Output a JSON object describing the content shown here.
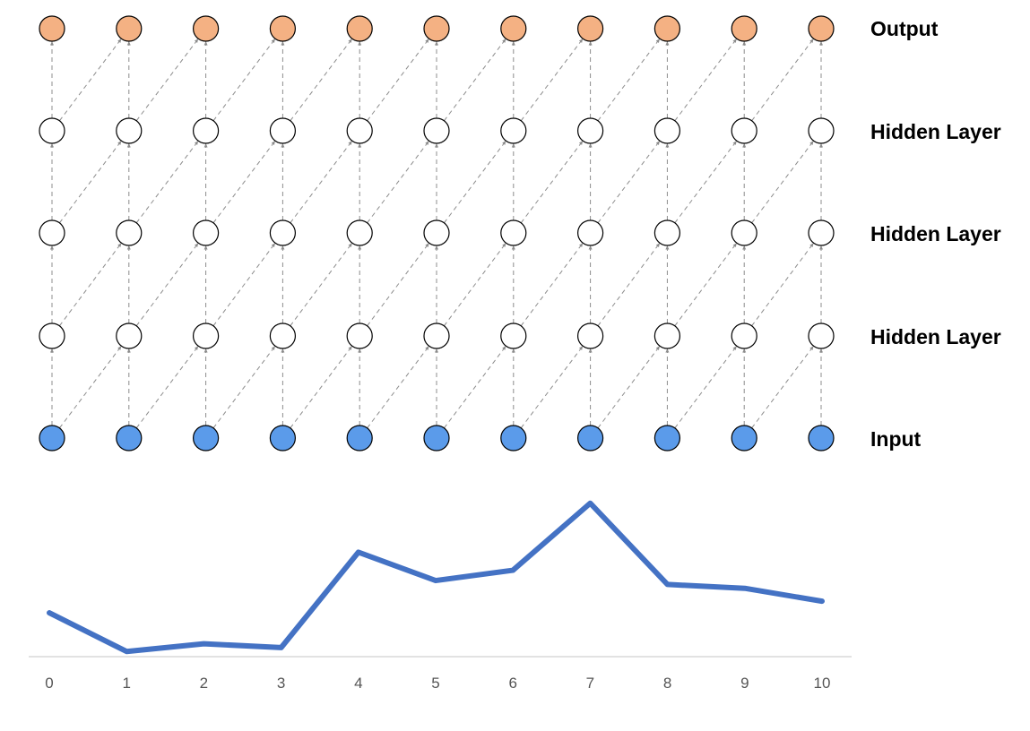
{
  "layers": [
    {
      "label": "Output",
      "role": "output",
      "fill": "#f4b183"
    },
    {
      "label": "Hidden Layer",
      "role": "hidden",
      "fill": "#ffffff"
    },
    {
      "label": "Hidden Layer",
      "role": "hidden",
      "fill": "#ffffff"
    },
    {
      "label": "Hidden Layer",
      "role": "hidden",
      "fill": "#ffffff"
    },
    {
      "label": "Input",
      "role": "input",
      "fill": "#5b9bea"
    }
  ],
  "timesteps": [
    "0",
    "1",
    "2",
    "3",
    "4",
    "5",
    "6",
    "7",
    "8",
    "9",
    "10"
  ],
  "edge_color": "#8c8c8c",
  "chart_data": {
    "type": "line",
    "x": [
      0,
      1,
      2,
      3,
      4,
      5,
      6,
      7,
      8,
      9,
      10
    ],
    "values": [
      3.1,
      0.1,
      0.7,
      0.4,
      7.8,
      5.6,
      6.4,
      11.6,
      5.3,
      5.0,
      4.0
    ],
    "ylim": [
      -0.3,
      14.5
    ],
    "line_color": "#4472c4",
    "axis_color": "#d0d0d0",
    "grid": false,
    "y_axis_visible": false
  }
}
